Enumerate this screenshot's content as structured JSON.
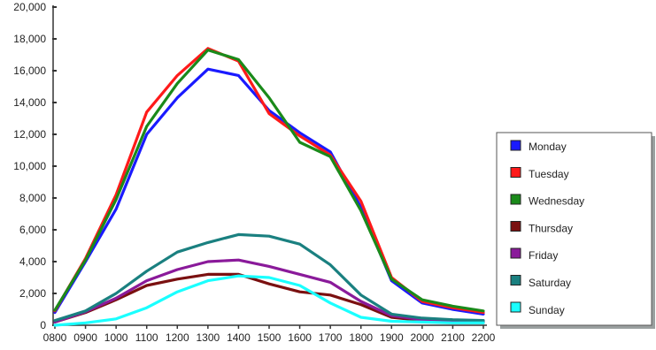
{
  "chart_data": {
    "type": "line",
    "title": "",
    "xlabel": "",
    "ylabel": "",
    "categories": [
      "0800",
      "0900",
      "1000",
      "1100",
      "1200",
      "1300",
      "1400",
      "1500",
      "1600",
      "1700",
      "1800",
      "1900",
      "2000",
      "2100",
      "2200"
    ],
    "y_ticks": [
      "0",
      "2,000",
      "4,000",
      "6,000",
      "8,000",
      "10,000",
      "12,000",
      "14,000",
      "16,000",
      "18,000",
      "20,000"
    ],
    "ylim": [
      0,
      20000
    ],
    "grid": false,
    "legend_position": "right",
    "series": [
      {
        "name": "Monday",
        "color": "#1a1aff",
        "values": [
          800,
          4000,
          7300,
          12000,
          14300,
          16100,
          15700,
          13500,
          12100,
          10900,
          7400,
          2800,
          1400,
          1000,
          700
        ]
      },
      {
        "name": "Tuesday",
        "color": "#ff1a1a",
        "values": [
          900,
          4200,
          8200,
          13400,
          15700,
          17400,
          16600,
          13300,
          11900,
          10700,
          7800,
          3000,
          1500,
          1100,
          800
        ]
      },
      {
        "name": "Wednesday",
        "color": "#1a8a1a",
        "values": [
          950,
          4100,
          7900,
          12500,
          15200,
          17300,
          16700,
          14300,
          11500,
          10600,
          7200,
          2900,
          1600,
          1200,
          900
        ]
      },
      {
        "name": "Thursday",
        "color": "#7a1010",
        "values": [
          200,
          800,
          1600,
          2500,
          2900,
          3200,
          3200,
          2600,
          2100,
          1900,
          1300,
          500,
          300,
          250,
          200
        ]
      },
      {
        "name": "Friday",
        "color": "#8a1a9a",
        "values": [
          200,
          850,
          1700,
          2800,
          3500,
          4000,
          4100,
          3700,
          3200,
          2700,
          1500,
          600,
          350,
          250,
          200
        ]
      },
      {
        "name": "Saturday",
        "color": "#1a8080",
        "values": [
          300,
          900,
          2000,
          3400,
          4600,
          5200,
          5700,
          5600,
          5100,
          3800,
          1900,
          700,
          450,
          350,
          300
        ]
      },
      {
        "name": "Sunday",
        "color": "#1affff",
        "values": [
          0,
          150,
          400,
          1100,
          2100,
          2800,
          3100,
          3000,
          2500,
          1400,
          500,
          250,
          200,
          150,
          150
        ]
      }
    ]
  }
}
